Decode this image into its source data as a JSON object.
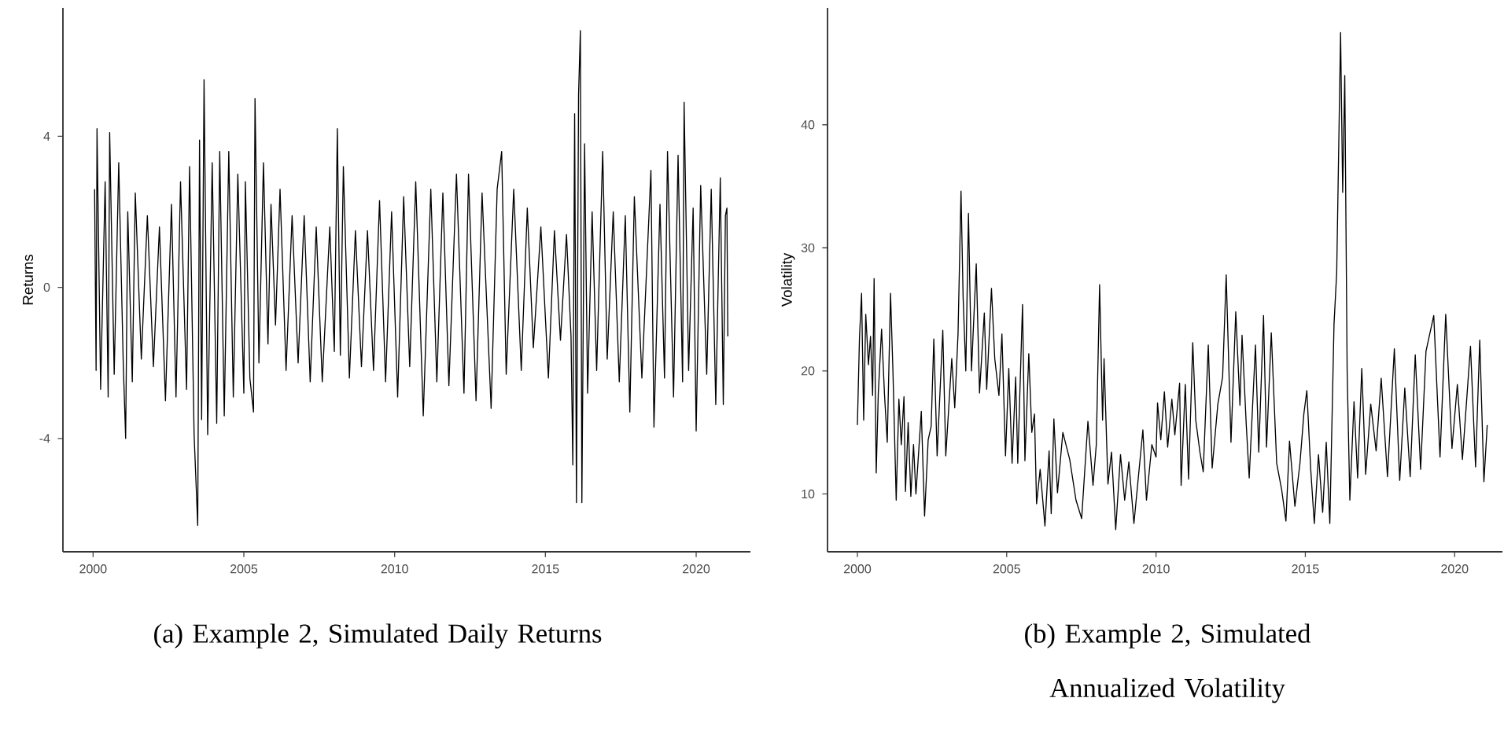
{
  "chart_data": [
    {
      "type": "line",
      "ylabel": "Returns",
      "color": "#000000",
      "xlim": [
        1999,
        2021.8
      ],
      "ylim": [
        -7,
        7.4
      ],
      "xticks": [
        2000,
        2005,
        2010,
        2015,
        2020
      ],
      "yticks": [
        -4,
        0,
        4
      ],
      "annotations": [
        "(a) Example 2, Simulated Daily Returns"
      ],
      "x": [
        2000.05,
        2000.1,
        2000.13,
        2000.25,
        2000.4,
        2000.5,
        2000.55,
        2000.7,
        2000.85,
        2001.0,
        2001.08,
        2001.15,
        2001.3,
        2001.4,
        2001.6,
        2001.8,
        2002.0,
        2002.2,
        2002.4,
        2002.6,
        2002.75,
        2002.9,
        2003.1,
        2003.2,
        2003.35,
        2003.47,
        2003.53,
        2003.6,
        2003.68,
        2003.8,
        2003.95,
        2004.1,
        2004.2,
        2004.35,
        2004.5,
        2004.65,
        2004.8,
        2005.0,
        2005.05,
        2005.2,
        2005.32,
        2005.37,
        2005.5,
        2005.65,
        2005.8,
        2005.9,
        2006.05,
        2006.2,
        2006.4,
        2006.6,
        2006.8,
        2007.0,
        2007.2,
        2007.4,
        2007.6,
        2007.85,
        2008.0,
        2008.1,
        2008.2,
        2008.3,
        2008.5,
        2008.7,
        2008.9,
        2009.1,
        2009.3,
        2009.5,
        2009.7,
        2009.9,
        2010.1,
        2010.3,
        2010.5,
        2010.7,
        2010.95,
        2011.2,
        2011.4,
        2011.6,
        2011.8,
        2012.05,
        2012.3,
        2012.45,
        2012.7,
        2012.9,
        2013.2,
        2013.4,
        2013.55,
        2013.7,
        2013.95,
        2014.2,
        2014.4,
        2014.6,
        2014.85,
        2015.1,
        2015.3,
        2015.5,
        2015.7,
        2015.85,
        2015.91,
        2015.97,
        2016.03,
        2016.1,
        2016.16,
        2016.21,
        2016.3,
        2016.4,
        2016.55,
        2016.7,
        2016.9,
        2017.05,
        2017.25,
        2017.45,
        2017.65,
        2017.8,
        2017.95,
        2018.2,
        2018.5,
        2018.6,
        2018.8,
        2018.95,
        2019.05,
        2019.25,
        2019.4,
        2019.55,
        2019.6,
        2019.75,
        2019.9,
        2020.0,
        2020.15,
        2020.35,
        2020.5,
        2020.65,
        2020.8,
        2020.9,
        2020.97,
        2021.02,
        2021.05
      ],
      "values": [
        2.6,
        -2.2,
        4.2,
        -2.7,
        2.8,
        -2.9,
        4.1,
        -2.3,
        3.3,
        -2.0,
        -4.0,
        2.0,
        -2.5,
        2.5,
        -1.9,
        1.9,
        -2.1,
        1.6,
        -3.0,
        2.2,
        -2.9,
        2.8,
        -2.7,
        3.2,
        -3.9,
        -6.3,
        3.9,
        -3.5,
        5.5,
        -3.9,
        3.3,
        -3.6,
        3.6,
        -3.4,
        3.6,
        -2.9,
        3.0,
        -2.8,
        2.8,
        -2.4,
        -3.3,
        5.0,
        -2.0,
        3.3,
        -1.5,
        2.2,
        -1.0,
        2.6,
        -2.2,
        1.9,
        -2.0,
        1.9,
        -2.5,
        1.6,
        -2.5,
        1.6,
        -1.7,
        4.2,
        -1.8,
        3.2,
        -2.4,
        1.5,
        -2.1,
        1.5,
        -2.2,
        2.3,
        -2.5,
        2.0,
        -2.9,
        2.4,
        -2.1,
        2.8,
        -3.4,
        2.6,
        -2.5,
        2.5,
        -2.6,
        3.0,
        -2.8,
        3.0,
        -3.0,
        2.5,
        -3.2,
        2.6,
        3.6,
        -2.3,
        2.6,
        -2.2,
        2.1,
        -1.6,
        1.6,
        -2.4,
        1.5,
        -1.4,
        1.4,
        -1.3,
        -4.7,
        4.6,
        -5.7,
        5.1,
        6.8,
        -5.7,
        3.8,
        -2.8,
        2.0,
        -2.2,
        3.6,
        -1.9,
        2.0,
        -2.5,
        1.9,
        -3.3,
        2.4,
        -2.4,
        3.1,
        -3.7,
        2.2,
        -2.4,
        3.6,
        -2.9,
        3.5,
        -2.5,
        4.9,
        -2.2,
        2.1,
        -3.8,
        2.7,
        -2.3,
        2.6,
        -3.1,
        2.9,
        -3.1,
        1.9,
        2.1,
        -1.3
      ]
    },
    {
      "type": "line",
      "ylabel": "Volatility",
      "color": "#000000",
      "xlim": [
        1999,
        2021.6
      ],
      "ylim": [
        5.3,
        49.5
      ],
      "xticks": [
        2000,
        2005,
        2010,
        2015,
        2020
      ],
      "yticks": [
        10,
        20,
        30,
        40
      ],
      "annotations": [
        "(b) Example 2, Simulated Annualized Volatility"
      ],
      "x": [
        2000.0,
        2000.07,
        2000.14,
        2000.21,
        2000.28,
        2000.37,
        2000.44,
        2000.51,
        2000.56,
        2000.63,
        2000.7,
        2000.81,
        2000.91,
        2001.0,
        2001.11,
        2001.19,
        2001.3,
        2001.39,
        2001.47,
        2001.56,
        2001.61,
        2001.7,
        2001.79,
        2001.88,
        2001.96,
        2002.14,
        2002.25,
        2002.37,
        2002.47,
        2002.56,
        2002.67,
        2002.86,
        2002.96,
        2003.16,
        2003.26,
        2003.37,
        2003.47,
        2003.54,
        2003.63,
        2003.72,
        2003.82,
        2003.98,
        2004.09,
        2004.25,
        2004.33,
        2004.49,
        2004.6,
        2004.74,
        2004.84,
        2004.96,
        2005.07,
        2005.18,
        2005.3,
        2005.37,
        2005.53,
        2005.61,
        2005.74,
        2005.84,
        2005.93,
        2006.0,
        2006.12,
        2006.28,
        2006.42,
        2006.49,
        2006.58,
        2006.7,
        2006.88,
        2007.11,
        2007.32,
        2007.51,
        2007.72,
        2007.89,
        2008.0,
        2008.11,
        2008.21,
        2008.26,
        2008.39,
        2008.51,
        2008.65,
        2008.81,
        2008.95,
        2009.09,
        2009.26,
        2009.56,
        2009.68,
        2009.86,
        2010.0,
        2010.05,
        2010.16,
        2010.28,
        2010.39,
        2010.53,
        2010.63,
        2010.79,
        2010.84,
        2010.98,
        2011.09,
        2011.23,
        2011.33,
        2011.47,
        2011.58,
        2011.75,
        2011.88,
        2012.07,
        2012.23,
        2012.35,
        2012.51,
        2012.67,
        2012.81,
        2012.88,
        2013.02,
        2013.12,
        2013.33,
        2013.44,
        2013.6,
        2013.7,
        2013.86,
        2014.04,
        2014.21,
        2014.35,
        2014.47,
        2014.65,
        2014.82,
        2014.95,
        2015.05,
        2015.18,
        2015.3,
        2015.44,
        2015.58,
        2015.7,
        2015.82,
        2015.96,
        2016.05,
        2016.18,
        2016.25,
        2016.32,
        2016.4,
        2016.49,
        2016.63,
        2016.75,
        2016.89,
        2017.02,
        2017.19,
        2017.37,
        2017.54,
        2017.75,
        2017.98,
        2018.16,
        2018.33,
        2018.51,
        2018.68,
        2018.86,
        2019.04,
        2019.3,
        2019.51,
        2019.7,
        2019.91,
        2020.09,
        2020.26,
        2020.53,
        2020.7,
        2020.84,
        2020.98,
        2021.09
      ],
      "values": [
        15.6,
        22.7,
        26.3,
        16,
        24.6,
        20.5,
        22.8,
        18,
        27.5,
        11.7,
        18.2,
        23.4,
        18,
        14.2,
        26.3,
        20,
        9.5,
        17.7,
        14,
        17.9,
        10.2,
        15.8,
        9.8,
        14,
        10,
        16.7,
        8.2,
        14.4,
        15.5,
        22.6,
        13.1,
        23.3,
        13.1,
        21,
        17,
        23,
        34.6,
        26,
        20,
        32.8,
        20,
        28.7,
        18.2,
        24.7,
        18.5,
        26.7,
        21,
        18,
        23,
        13.1,
        20.2,
        12.5,
        19.5,
        12.5,
        25.4,
        12.7,
        21.4,
        15,
        16.5,
        9.2,
        12,
        7.4,
        13.5,
        8.4,
        16.1,
        10.1,
        15,
        12.8,
        9.5,
        8,
        15.9,
        10.7,
        14,
        27,
        16,
        21,
        10.8,
        13.4,
        7.1,
        13.2,
        9.5,
        12.6,
        7.6,
        15.2,
        9.5,
        14,
        13,
        17.4,
        14.4,
        18.3,
        13.8,
        17.7,
        14.8,
        19,
        10.7,
        18.9,
        11.2,
        22.3,
        16,
        13.4,
        11.8,
        22.1,
        12.1,
        17.3,
        19.5,
        27.8,
        14.2,
        24.8,
        17.2,
        22.9,
        15.7,
        11.3,
        22.1,
        13.4,
        24.5,
        13.8,
        23.1,
        12.5,
        10.3,
        7.8,
        14.3,
        9,
        12.5,
        16.5,
        18.4,
        12,
        7.6,
        13.2,
        8.5,
        14.2,
        7.6,
        23.8,
        28,
        47.5,
        34.5,
        44,
        20,
        9.5,
        17.5,
        11.3,
        20.2,
        11.6,
        17.3,
        13.5,
        19.4,
        11.4,
        21.8,
        11.1,
        18.6,
        11.4,
        21.3,
        12,
        21.6,
        24.5,
        13,
        24.6,
        13.7,
        18.9,
        12.8,
        22,
        12.2,
        22.5,
        11,
        15.6
      ]
    }
  ]
}
